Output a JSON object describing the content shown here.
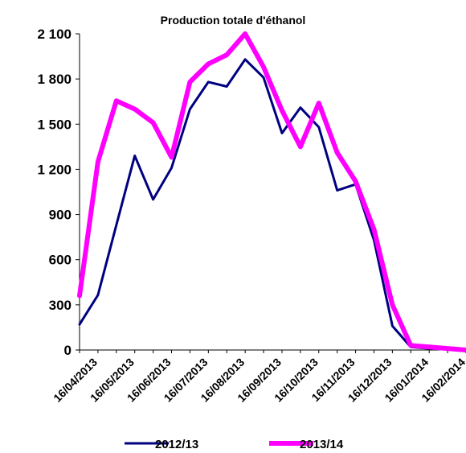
{
  "chart_data": {
    "type": "line",
    "title": "Production totale d'éthanol",
    "xlabel": "",
    "ylabel": "",
    "ylim": [
      0,
      2100
    ],
    "yticks": [
      "2 100",
      "1 800",
      "1 500",
      "1 200",
      "900",
      "600",
      "300",
      "0"
    ],
    "ytick_values": [
      2100,
      1800,
      1500,
      1200,
      900,
      600,
      300,
      0
    ],
    "xticks": [
      "16/04/2013",
      "16/05/2013",
      "16/06/2013",
      "16/07/2013",
      "16/08/2013",
      "16/09/2013",
      "16/10/2013",
      "16/11/2013",
      "16/12/2013",
      "16/01/2014",
      "16/02/2014"
    ],
    "x": [
      "01/04/2013",
      "16/04/2013",
      "01/05/2013",
      "16/05/2013",
      "01/06/2013",
      "16/06/2013",
      "01/07/2013",
      "16/07/2013",
      "01/08/2013",
      "16/08/2013",
      "01/09/2013",
      "16/09/2013",
      "01/10/2013",
      "16/10/2013",
      "01/11/2013",
      "16/11/2013",
      "01/12/2013",
      "16/12/2013",
      "01/01/2014",
      "16/01/2014",
      "01/02/2014",
      "16/02/2014"
    ],
    "grid": false,
    "legend_position": "bottom",
    "series": [
      {
        "name": "2012/13",
        "color": "#000080",
        "values": [
          170,
          365,
          830,
          1290,
          1000,
          1210,
          1600,
          1780,
          1750,
          1930,
          1810,
          1440,
          1610,
          1480,
          1060,
          1100,
          730,
          160,
          20,
          10,
          5,
          0
        ]
      },
      {
        "name": "2013/14",
        "color": "#ff00ff",
        "values": [
          360,
          1250,
          1655,
          1600,
          1510,
          1280,
          1780,
          1900,
          1960,
          2100,
          1880,
          1590,
          1350,
          1640,
          1310,
          1120,
          800,
          300,
          30,
          20,
          10,
          0
        ]
      }
    ]
  }
}
